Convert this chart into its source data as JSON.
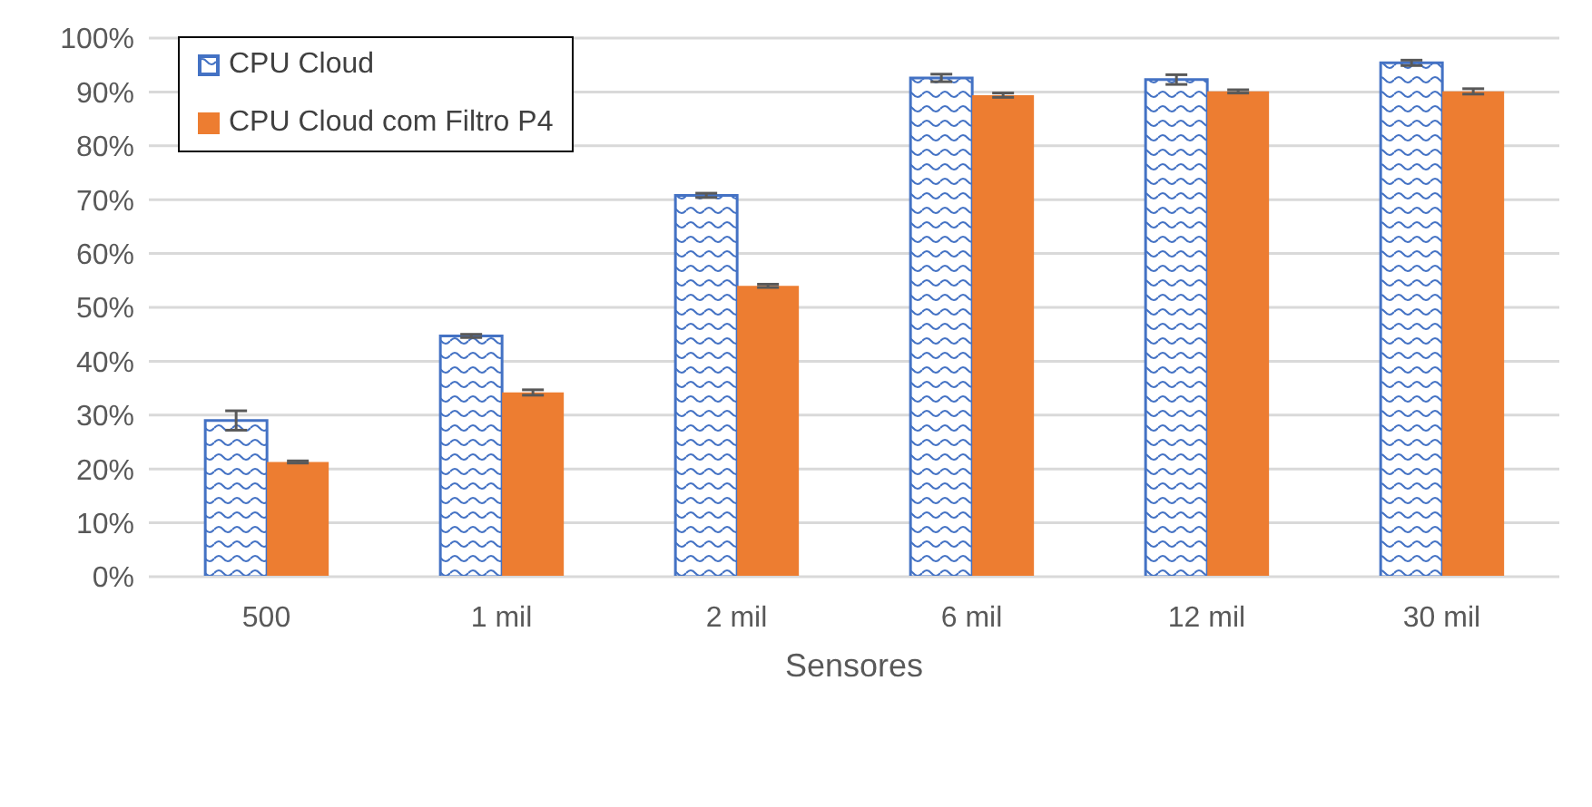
{
  "chart_data": {
    "type": "bar",
    "xlabel": "Sensores",
    "categories": [
      "500",
      "1 mil",
      "2 mil",
      "6 mil",
      "12 mil",
      "30 mil"
    ],
    "series": [
      {
        "name": "CPU Cloud",
        "color": "#4472c4",
        "values": [
          29.0,
          44.7,
          70.8,
          92.6,
          92.3,
          95.4
        ],
        "errors": [
          1.8,
          0.3,
          0.4,
          0.7,
          0.9,
          0.5
        ]
      },
      {
        "name": "CPU Cloud com Filtro P4",
        "color": "#ed7d31",
        "values": [
          21.3,
          34.2,
          54.0,
          89.4,
          90.1,
          90.1
        ],
        "errors": [
          0.2,
          0.5,
          0.3,
          0.4,
          0.3,
          0.5
        ]
      }
    ],
    "ylim": [
      0,
      100
    ],
    "yticks": [
      {
        "value": 0,
        "label": "0%"
      },
      {
        "value": 10,
        "label": "10%"
      },
      {
        "value": 20,
        "label": "20%"
      },
      {
        "value": 30,
        "label": "30%"
      },
      {
        "value": 40,
        "label": "40%"
      },
      {
        "value": 50,
        "label": "50%"
      },
      {
        "value": 60,
        "label": "60%"
      },
      {
        "value": 70,
        "label": "70%"
      },
      {
        "value": 80,
        "label": "80%"
      },
      {
        "value": 90,
        "label": "90%"
      },
      {
        "value": 100,
        "label": "100%"
      }
    ],
    "grid": "y",
    "legend": "top left"
  }
}
